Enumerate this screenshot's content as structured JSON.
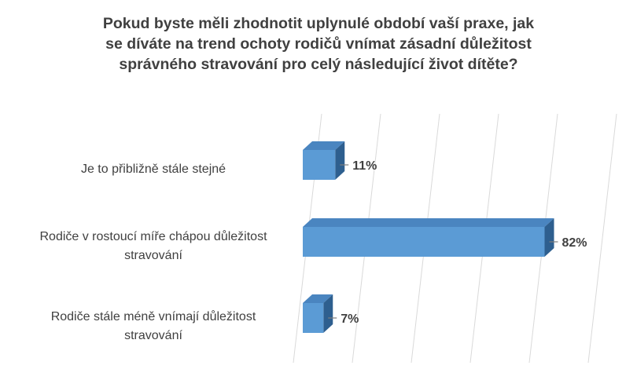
{
  "chart_data": {
    "type": "bar",
    "orientation": "horizontal",
    "style": "3d",
    "title": "Pokud byste měli zhodnotit uplynulé období vaší praxe, jak\nse díváte na trend ochoty rodičů vnímat zásadní důležitost\nsprávného stravování pro celý následující život dítěte?",
    "categories": [
      "Je to přibližně stále stejné",
      "Rodiče v rostoucí míře chápou důležitost\nstravování",
      "Rodiče stále méně vnímají důležitost\nstravování"
    ],
    "series": [
      {
        "values": [
          11,
          82,
          7
        ],
        "labels": [
          "11%",
          "82%",
          "7%"
        ],
        "color": "#5b9bd5"
      }
    ],
    "xlim": [
      0,
      100
    ],
    "gridlines": true,
    "legend": "none",
    "colors": {
      "bar_front": "#5b9bd5",
      "bar_top": "#4a85c0",
      "bar_side": "#2e5f8f",
      "gridline": "#d9d9d9",
      "text": "#404040"
    }
  }
}
